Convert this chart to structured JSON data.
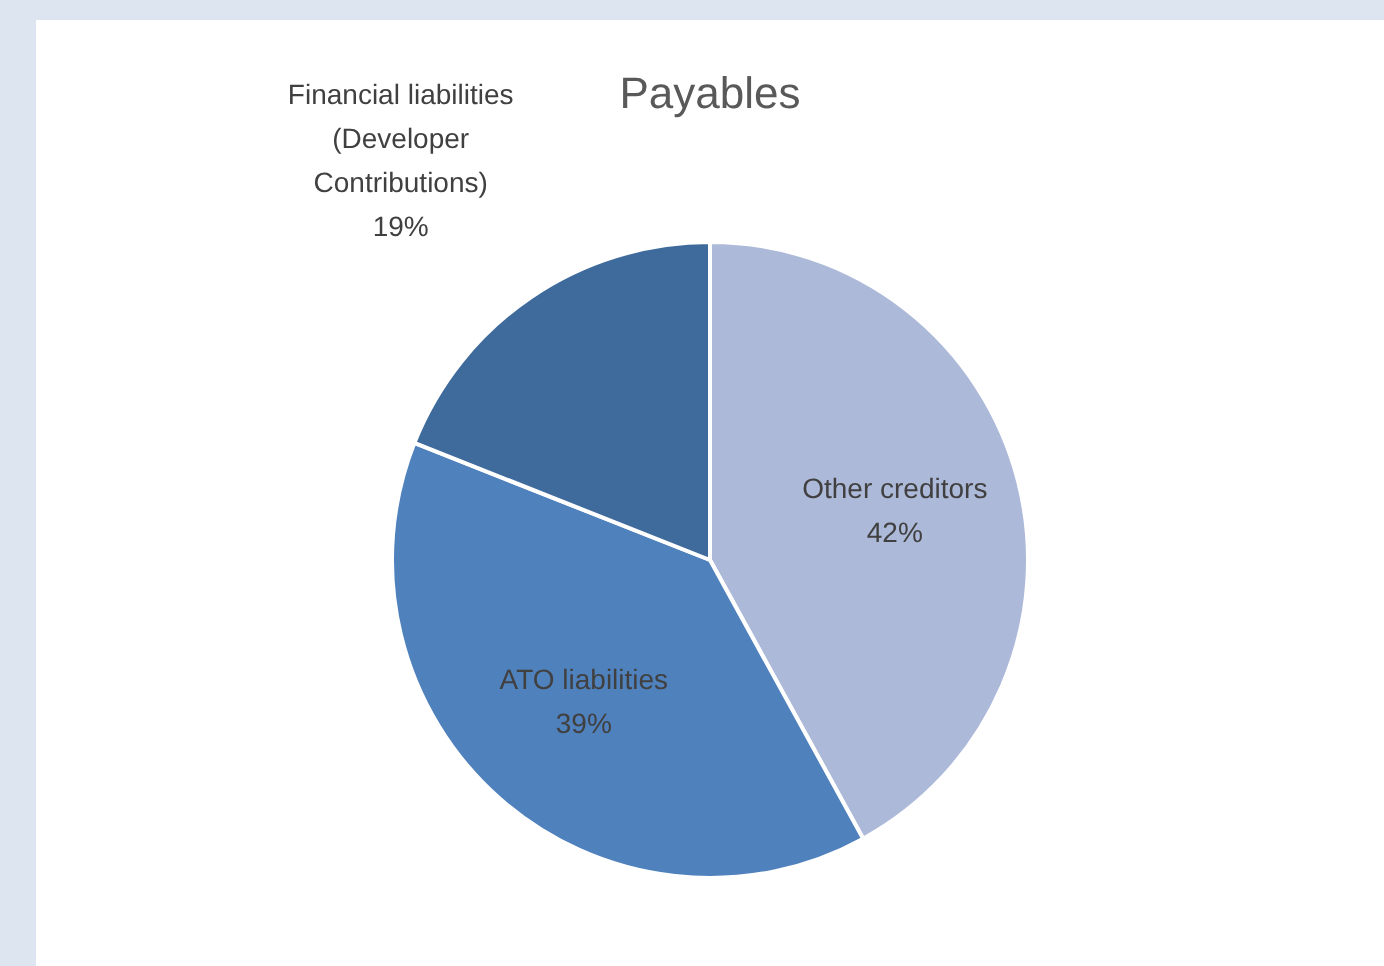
{
  "chart_data": {
    "type": "pie",
    "title": "Payables",
    "categories": [
      "Other creditors",
      "ATO liabilities",
      "Financial liabilities (Developer Contributions)"
    ],
    "values": [
      42,
      39,
      19
    ],
    "colors": [
      "#adb9d9",
      "#4f81bd",
      "#3f6a9c"
    ],
    "value_labels": [
      "42%",
      "39%",
      "19%"
    ],
    "legend": false
  }
}
